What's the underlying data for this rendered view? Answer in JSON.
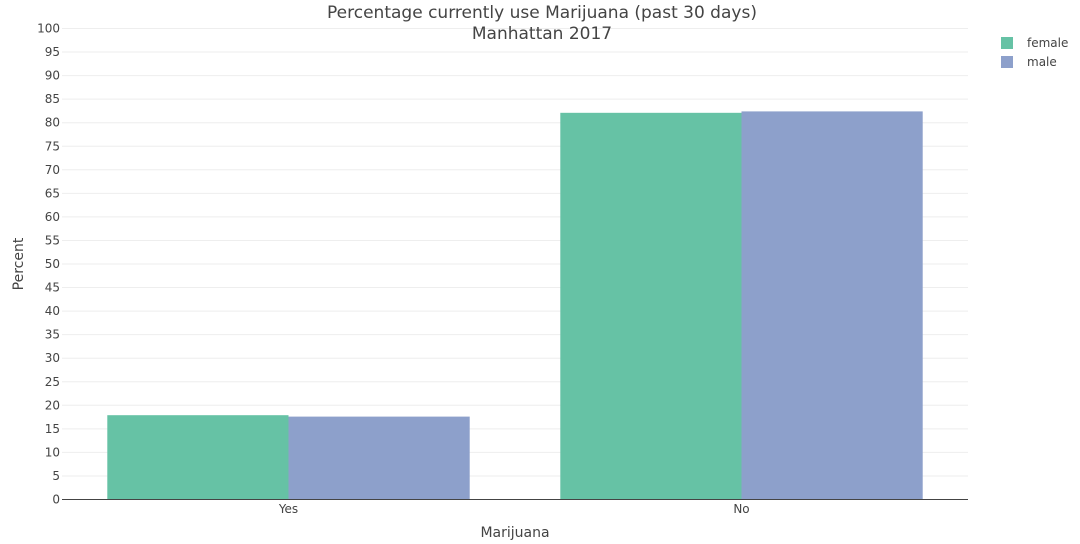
{
  "chart_data": {
    "type": "bar",
    "title": "Percentage currently use Marijuana (past 30 days)",
    "subtitle": "Manhattan 2017",
    "xlabel": "Marijuana",
    "ylabel": "Percent",
    "categories": [
      "Yes",
      "No"
    ],
    "series": [
      {
        "name": "female",
        "color": "#66c2a5",
        "values": [
          17.9,
          82.1
        ]
      },
      {
        "name": "male",
        "color": "#8da0cb",
        "values": [
          17.6,
          82.4
        ]
      }
    ],
    "ylim": [
      0,
      100
    ],
    "ytick_step": 5,
    "grid": true,
    "legend_position": "top-right"
  }
}
